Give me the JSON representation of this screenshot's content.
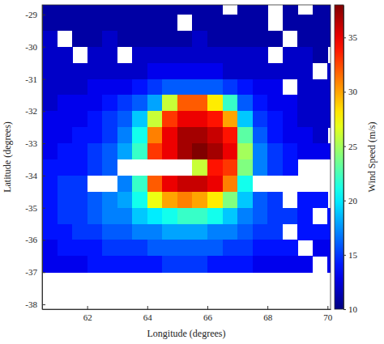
{
  "chart_data": {
    "type": "heatmap",
    "xlabel": "Longitude (degrees)",
    "ylabel": "Latitude (degrees)",
    "xlim": [
      60.5,
      70.1
    ],
    "ylim": [
      -38.15,
      -28.7
    ],
    "xticks": [
      62,
      64,
      66,
      68,
      70
    ],
    "yticks": [
      -29,
      -30,
      -31,
      -32,
      -33,
      -34,
      -35,
      -36,
      -37,
      -38
    ],
    "x": [
      60.75,
      61.25,
      61.75,
      62.25,
      62.75,
      63.25,
      63.75,
      64.25,
      64.75,
      65.25,
      65.75,
      66.25,
      66.75,
      67.25,
      67.75,
      68.25,
      68.75,
      69.25,
      69.75,
      70.25
    ],
    "y": [
      -28.75,
      -29.25,
      -29.75,
      -30.25,
      -30.75,
      -31.25,
      -31.75,
      -32.25,
      -32.75,
      -33.25,
      -33.75,
      -34.25,
      -34.75,
      -35.25,
      -35.75,
      -36.25,
      -36.75
    ],
    "values": [
      [
        11,
        11,
        11,
        11,
        11,
        11,
        11,
        11,
        11,
        11,
        11,
        11,
        null,
        11,
        11,
        null,
        11,
        null,
        11,
        11
      ],
      [
        11,
        11,
        11,
        11,
        11,
        11,
        11,
        11,
        11,
        null,
        11,
        11,
        11,
        11,
        11,
        null,
        11,
        11,
        11,
        11
      ],
      [
        12,
        null,
        11,
        11,
        12,
        11,
        11,
        11,
        11,
        11,
        12,
        11,
        11,
        11,
        11,
        11,
        null,
        11,
        11,
        11
      ],
      [
        12,
        12,
        null,
        12,
        12,
        null,
        12,
        12,
        12,
        12,
        12,
        12,
        12,
        12,
        12,
        null,
        12,
        12,
        11,
        null
      ],
      [
        12,
        12,
        12,
        12,
        12,
        12,
        12,
        13,
        13,
        13,
        13,
        13,
        12,
        12,
        12,
        12,
        12,
        12,
        null,
        12
      ],
      [
        12,
        12,
        12,
        13,
        13,
        13,
        14,
        15,
        16,
        16,
        16,
        16,
        15,
        14,
        13,
        13,
        null,
        12,
        12,
        12
      ],
      [
        12,
        13,
        13,
        13,
        14,
        15,
        16,
        18,
        26,
        32,
        32,
        28,
        22,
        16,
        14,
        13,
        13,
        12,
        12,
        12
      ],
      [
        13,
        13,
        13,
        14,
        15,
        16,
        19,
        26,
        33,
        35,
        35,
        34,
        30,
        19,
        15,
        14,
        13,
        12,
        12,
        12
      ],
      [
        13,
        13,
        14,
        14,
        15,
        17,
        21,
        31,
        35,
        37,
        37,
        36,
        34,
        23,
        16,
        14,
        13,
        13,
        12,
        null
      ],
      [
        13,
        14,
        14,
        15,
        16,
        18,
        22,
        33,
        35,
        37,
        38,
        37,
        35,
        25,
        17,
        15,
        14,
        13,
        13,
        13
      ],
      [
        14,
        14,
        14,
        15,
        16,
        null,
        null,
        null,
        null,
        null,
        26,
        34,
        33,
        24,
        17,
        15,
        14,
        null,
        null,
        null
      ],
      [
        14,
        15,
        15,
        null,
        null,
        17,
        22,
        32,
        35,
        36,
        36,
        35,
        31,
        21,
        null,
        null,
        null,
        null,
        null,
        null
      ],
      [
        14,
        15,
        15,
        16,
        17,
        18,
        21,
        27,
        30,
        31,
        30,
        28,
        24,
        19,
        16,
        15,
        null,
        14,
        14,
        null
      ],
      [
        14,
        15,
        15,
        16,
        17,
        17,
        19,
        20,
        21,
        22,
        22,
        21,
        19,
        17,
        16,
        15,
        15,
        14,
        null,
        14
      ],
      [
        14,
        14,
        15,
        15,
        16,
        16,
        17,
        17,
        18,
        18,
        18,
        17,
        17,
        16,
        15,
        15,
        null,
        14,
        14,
        14
      ],
      [
        13,
        14,
        14,
        14,
        15,
        15,
        15,
        16,
        16,
        16,
        16,
        16,
        15,
        15,
        14,
        14,
        14,
        null,
        13,
        13
      ],
      [
        13,
        13,
        13,
        14,
        14,
        14,
        14,
        14,
        15,
        15,
        15,
        14,
        14,
        14,
        13,
        13,
        13,
        13,
        null,
        13
      ]
    ],
    "colorbar": {
      "label": "Wind Speed (m/s)",
      "range": [
        10,
        38
      ],
      "ticks": [
        10,
        15,
        20,
        25,
        30,
        35
      ]
    }
  }
}
